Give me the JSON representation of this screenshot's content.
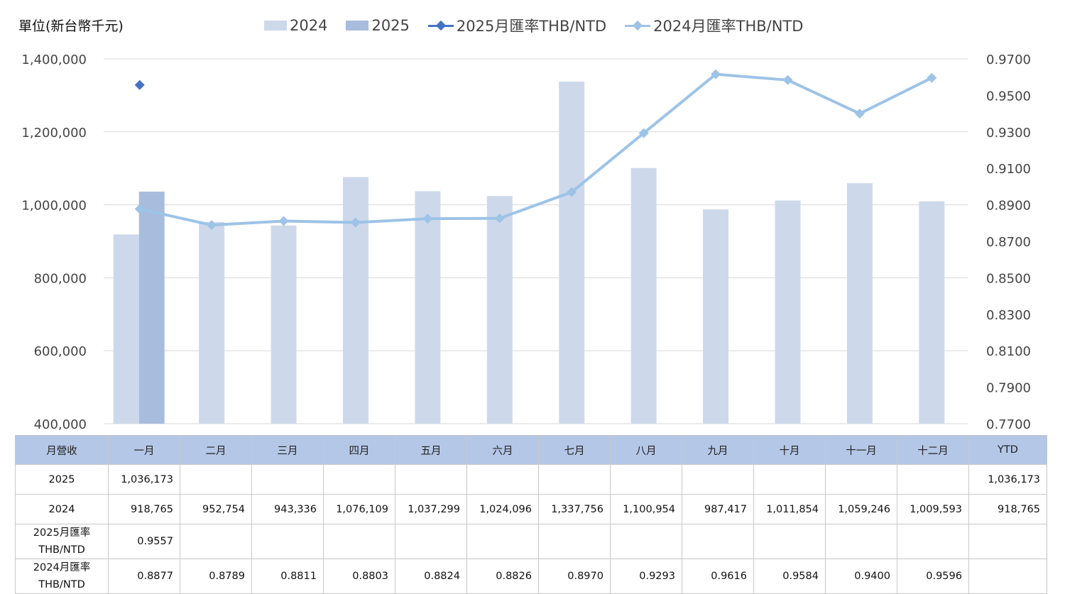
{
  "unit_label": "單位(新台幣千元)",
  "legend": [
    {
      "label": "2024",
      "kind": "bar",
      "color": "#cdd9eb"
    },
    {
      "label": "2025",
      "kind": "bar",
      "color": "#a8bcdd"
    },
    {
      "label": "2025月匯率THB/NTD",
      "kind": "line",
      "color": "#4472c4"
    },
    {
      "label": "2024月匯率THB/NTD",
      "kind": "line",
      "color": "#9dc3e6"
    }
  ],
  "chart_data": {
    "type": "bar",
    "categories": [
      "一月",
      "二月",
      "三月",
      "四月",
      "五月",
      "六月",
      "七月",
      "八月",
      "九月",
      "十月",
      "十一月",
      "十二月"
    ],
    "series": [
      {
        "name": "2024",
        "type": "bar",
        "axis": "left",
        "color": "#cdd9eb",
        "values": [
          918765,
          952754,
          943336,
          1076109,
          1037299,
          1024096,
          1337756,
          1100954,
          987417,
          1011854,
          1059246,
          1009593
        ]
      },
      {
        "name": "2025",
        "type": "bar",
        "axis": "left",
        "color": "#a8bcdd",
        "values": [
          1036173,
          null,
          null,
          null,
          null,
          null,
          null,
          null,
          null,
          null,
          null,
          null
        ]
      },
      {
        "name": "2025月匯率THB/NTD",
        "type": "line",
        "axis": "right",
        "color": "#4472c4",
        "values": [
          0.9557,
          null,
          null,
          null,
          null,
          null,
          null,
          null,
          null,
          null,
          null,
          null
        ]
      },
      {
        "name": "2024月匯率THB/NTD",
        "type": "line",
        "axis": "right",
        "color": "#9dc3e6",
        "values": [
          0.8877,
          0.8789,
          0.8811,
          0.8803,
          0.8824,
          0.8826,
          0.897,
          0.9293,
          0.9616,
          0.9584,
          0.94,
          0.9596
        ]
      }
    ],
    "ylim": [
      400000,
      1400000
    ],
    "y_ticks": [
      "400,000",
      "600,000",
      "800,000",
      "1,000,000",
      "1,200,000",
      "1,400,000"
    ],
    "y2lim": [
      0.77,
      0.97
    ],
    "y2_ticks": [
      "0.7700",
      "0.7900",
      "0.8100",
      "0.8300",
      "0.8500",
      "0.8700",
      "0.8900",
      "0.9100",
      "0.9300",
      "0.9500",
      "0.9700"
    ],
    "grid": true,
    "legend_position": "top"
  },
  "table": {
    "header": [
      "月營收",
      "一月",
      "二月",
      "三月",
      "四月",
      "五月",
      "六月",
      "七月",
      "八月",
      "九月",
      "十月",
      "十一月",
      "十二月",
      "YTD"
    ],
    "rows": [
      {
        "label": [
          "2025"
        ],
        "cells": [
          "1,036,173",
          "",
          "",
          "",
          "",
          "",
          "",
          "",
          "",
          "",
          "",
          "",
          "1,036,173"
        ]
      },
      {
        "label": [
          "2024"
        ],
        "cells": [
          "918,765",
          "952,754",
          "943,336",
          "1,076,109",
          "1,037,299",
          "1,024,096",
          "1,337,756",
          "1,100,954",
          "987,417",
          "1,011,854",
          "1,059,246",
          "1,009,593",
          "918,765"
        ]
      },
      {
        "label": [
          "2025月匯率",
          "THB/NTD"
        ],
        "cells": [
          "0.9557",
          "",
          "",
          "",
          "",
          "",
          "",
          "",
          "",
          "",
          "",
          "",
          ""
        ]
      },
      {
        "label": [
          "2024月匯率",
          "THB/NTD"
        ],
        "cells": [
          "0.8877",
          "0.8789",
          "0.8811",
          "0.8803",
          "0.8824",
          "0.8826",
          "0.8970",
          "0.9293",
          "0.9616",
          "0.9584",
          "0.9400",
          "0.9596",
          ""
        ]
      }
    ]
  }
}
